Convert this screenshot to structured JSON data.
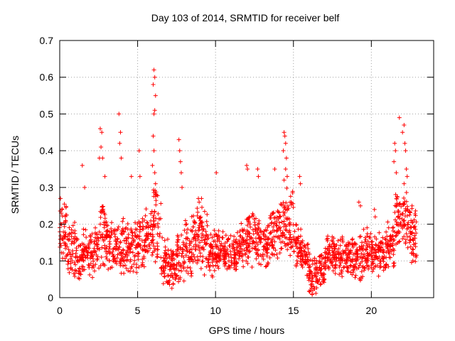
{
  "chart_data": {
    "type": "scatter",
    "title": "Day 103 of 2014, SRMTID for receiver belf",
    "xlabel": "GPS time / hours",
    "ylabel": "SRMTID / TECUs",
    "xlim": [
      0,
      24
    ],
    "ylim": [
      0,
      0.7
    ],
    "xticks": [
      0,
      5,
      10,
      15,
      20
    ],
    "yticks": [
      0,
      0.1,
      0.2,
      0.3,
      0.4,
      0.5,
      0.6,
      0.7
    ],
    "grid": true,
    "marker": "+",
    "marker_color": "#ff0000",
    "grid_color": "#a0a0a0",
    "series": [
      {
        "name": "SRMTID",
        "color": "#ff0000",
        "bands": [
          [
            0.0,
            0.1,
            0.24
          ],
          [
            0.5,
            0.07,
            0.19
          ],
          [
            1.0,
            0.07,
            0.15
          ],
          [
            1.5,
            0.08,
            0.17
          ],
          [
            2.0,
            0.08,
            0.17
          ],
          [
            2.5,
            0.09,
            0.26
          ],
          [
            3.0,
            0.09,
            0.2
          ],
          [
            3.5,
            0.09,
            0.17
          ],
          [
            4.0,
            0.07,
            0.21
          ],
          [
            4.5,
            0.08,
            0.2
          ],
          [
            5.0,
            0.08,
            0.21
          ],
          [
            5.5,
            0.12,
            0.22
          ],
          [
            6.0,
            0.11,
            0.3
          ],
          [
            6.5,
            0.05,
            0.14
          ],
          [
            7.0,
            0.05,
            0.1
          ],
          [
            7.5,
            0.06,
            0.16
          ],
          [
            8.0,
            0.08,
            0.21
          ],
          [
            8.5,
            0.1,
            0.22
          ],
          [
            9.0,
            0.09,
            0.23
          ],
          [
            9.5,
            0.08,
            0.17
          ],
          [
            10.0,
            0.1,
            0.17
          ],
          [
            10.5,
            0.09,
            0.15
          ],
          [
            11.0,
            0.09,
            0.15
          ],
          [
            11.5,
            0.1,
            0.18
          ],
          [
            12.0,
            0.11,
            0.23
          ],
          [
            12.5,
            0.1,
            0.2
          ],
          [
            13.0,
            0.09,
            0.18
          ],
          [
            13.5,
            0.12,
            0.22
          ],
          [
            14.0,
            0.14,
            0.24
          ],
          [
            14.5,
            0.14,
            0.28
          ],
          [
            15.0,
            0.1,
            0.18
          ],
          [
            15.5,
            0.08,
            0.14
          ],
          [
            16.0,
            0.03,
            0.09
          ],
          [
            16.5,
            0.05,
            0.1
          ],
          [
            17.0,
            0.09,
            0.15
          ],
          [
            17.5,
            0.08,
            0.14
          ],
          [
            18.0,
            0.08,
            0.14
          ],
          [
            18.5,
            0.07,
            0.15
          ],
          [
            19.0,
            0.07,
            0.15
          ],
          [
            19.5,
            0.08,
            0.17
          ],
          [
            20.0,
            0.08,
            0.15
          ],
          [
            20.5,
            0.08,
            0.16
          ],
          [
            21.0,
            0.1,
            0.19
          ],
          [
            21.5,
            0.14,
            0.26
          ],
          [
            22.0,
            0.15,
            0.28
          ],
          [
            22.5,
            0.1,
            0.24
          ]
        ],
        "peaks": [
          [
            0.05,
            0.27
          ],
          [
            0.1,
            0.23
          ],
          [
            1.45,
            0.36
          ],
          [
            1.6,
            0.3
          ],
          [
            2.6,
            0.46
          ],
          [
            2.7,
            0.45
          ],
          [
            2.65,
            0.41
          ],
          [
            2.55,
            0.38
          ],
          [
            2.75,
            0.38
          ],
          [
            2.9,
            0.33
          ],
          [
            3.8,
            0.5
          ],
          [
            3.9,
            0.45
          ],
          [
            3.85,
            0.42
          ],
          [
            3.95,
            0.38
          ],
          [
            4.6,
            0.33
          ],
          [
            5.1,
            0.4
          ],
          [
            5.15,
            0.33
          ],
          [
            6.05,
            0.62
          ],
          [
            6.1,
            0.6
          ],
          [
            6.0,
            0.58
          ],
          [
            6.15,
            0.55
          ],
          [
            6.1,
            0.51
          ],
          [
            6.05,
            0.5
          ],
          [
            6.0,
            0.44
          ],
          [
            6.05,
            0.4
          ],
          [
            5.95,
            0.36
          ],
          [
            6.1,
            0.34
          ],
          [
            6.15,
            0.31
          ],
          [
            7.65,
            0.43
          ],
          [
            7.7,
            0.4
          ],
          [
            7.75,
            0.37
          ],
          [
            7.8,
            0.34
          ],
          [
            7.85,
            0.3
          ],
          [
            8.9,
            0.27
          ],
          [
            9.1,
            0.27
          ],
          [
            10.05,
            0.34
          ],
          [
            12.0,
            0.36
          ],
          [
            12.05,
            0.35
          ],
          [
            12.7,
            0.35
          ],
          [
            12.75,
            0.33
          ],
          [
            13.8,
            0.35
          ],
          [
            14.4,
            0.45
          ],
          [
            14.45,
            0.44
          ],
          [
            14.5,
            0.42
          ],
          [
            14.35,
            0.4
          ],
          [
            14.55,
            0.38
          ],
          [
            14.5,
            0.35
          ],
          [
            14.6,
            0.33
          ],
          [
            14.4,
            0.32
          ],
          [
            15.4,
            0.33
          ],
          [
            15.45,
            0.31
          ],
          [
            16.1,
            0.02
          ],
          [
            16.2,
            0.01
          ],
          [
            16.3,
            0.03
          ],
          [
            19.2,
            0.26
          ],
          [
            19.3,
            0.25
          ],
          [
            21.5,
            0.42
          ],
          [
            21.55,
            0.4
          ],
          [
            21.45,
            0.37
          ],
          [
            21.6,
            0.34
          ],
          [
            21.8,
            0.49
          ],
          [
            22.1,
            0.47
          ],
          [
            22.15,
            0.42
          ],
          [
            22.0,
            0.45
          ],
          [
            22.2,
            0.4
          ],
          [
            22.25,
            0.35
          ],
          [
            22.3,
            0.33
          ],
          [
            22.1,
            0.31
          ],
          [
            20.2,
            0.24
          ],
          [
            20.25,
            0.22
          ],
          [
            8.95,
            0.26
          ]
        ]
      }
    ]
  }
}
